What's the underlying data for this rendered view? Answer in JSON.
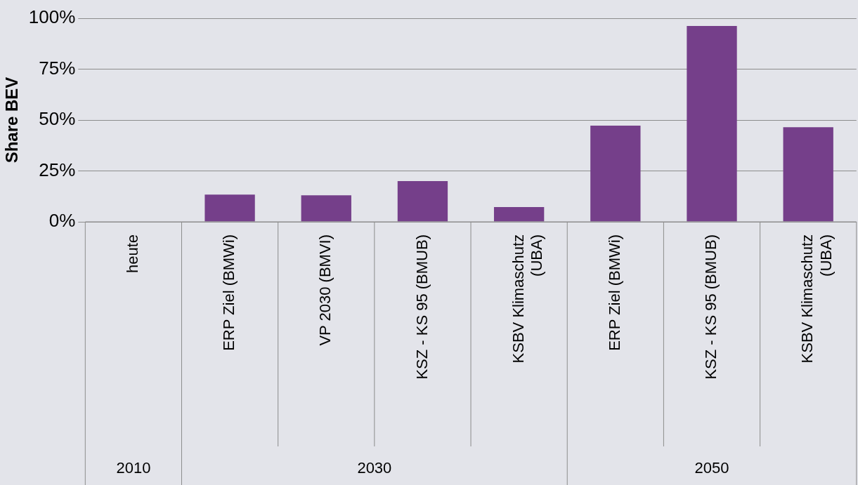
{
  "chart_data": {
    "type": "bar",
    "ylabel": "Share BEV",
    "categories": [
      "heute",
      "ERP Ziel (BMWi)",
      "VP 2030 (BMVI)",
      "KSZ - KS 95 (BMUB)",
      "KSBV Klimaschutz (UBA)",
      "ERP Ziel (BMWi)",
      "KSZ - KS 95 (BMUB)",
      "KSBV Klimaschutz (UBA)"
    ],
    "values": [
      0,
      13.4,
      13,
      20,
      7.2,
      47.2,
      96.2,
      46.5
    ],
    "color": "#753f8a",
    "ylim": [
      0,
      100
    ],
    "yticks": [
      {
        "value": 0,
        "label": "0%"
      },
      {
        "value": 25,
        "label": "25%"
      },
      {
        "value": 50,
        "label": "50%"
      },
      {
        "value": 75,
        "label": "75%"
      },
      {
        "value": 100,
        "label": "100%"
      }
    ],
    "grid": "y",
    "annotations": [
      "2010",
      "2030",
      "2050"
    ]
  }
}
